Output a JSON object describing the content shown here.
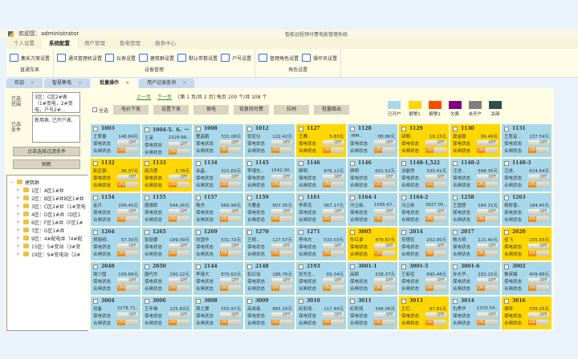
{
  "header": {
    "welcome": "欢迎您：administrator",
    "system_title": "智能远程预付费电能管理系统"
  },
  "menu_tabs": [
    {
      "label": "个人设置"
    },
    {
      "label": "系统配置",
      "active": true
    },
    {
      "label": "用户管理"
    },
    {
      "label": "售电管理"
    },
    {
      "label": "报表中心"
    }
  ],
  "toolbar_groups": [
    {
      "label": "直通车表",
      "buttons": [
        "集采方案设置"
      ]
    },
    {
      "label": "设备管理",
      "buttons": [
        "通讯管理机设置",
        "仪表设置",
        "建筑群设置",
        "默认参数设置",
        "户号设置"
      ]
    },
    {
      "label": "角色设置",
      "buttons": [
        "管理角色设置",
        "操作员设置"
      ]
    }
  ],
  "doc_tabs": [
    {
      "label": "欢迎"
    },
    {
      "label": "智慧售电"
    },
    {
      "label": "批量操作",
      "active": true
    },
    {
      "label": "用户记录查询"
    }
  ],
  "left": {
    "range_label": "已选范围",
    "range_value": "3区：C区2#表（1#变电，2#变电，户号2#...",
    "cond_label": "已选条件",
    "cond_value": "新用表, 已开户表,",
    "filter_button": "点击选择过滤条件",
    "refresh_button": "刷新",
    "tree": [
      "建筑群",
      "1区：A区1#井",
      "2区：B区1#井B区1#井",
      "3区：C区2#井（1#变电",
      "4区：D区1#井（D区1",
      "6区：F区1#井（F区1#",
      "7区：G区1#井",
      "9区：4#配电井（4#配",
      "15区：5#变站（3#变",
      "19区：9#变电站（2#"
    ]
  },
  "pager": {
    "prev": "上一页",
    "next": "下一页",
    "info": "[第 1 页/共 2 页] 每页 100 个/共 108 个"
  },
  "ops": {
    "select_all": "全选",
    "buttons": [
      "电价下发",
      "设置下发",
      "保电",
      "恢复待付费",
      "拉闸",
      "批量跳出"
    ]
  },
  "legend": [
    {
      "label": "已开户",
      "color": "#a8d8ea"
    },
    {
      "label": "报警1",
      "color": "#ffd700"
    },
    {
      "label": "报警2",
      "color": "#ff4a00"
    },
    {
      "label": "欠费",
      "color": "#800080"
    },
    {
      "label": "未开户",
      "color": "#808080"
    },
    {
      "label": "关阀",
      "color": "#2f4f4f"
    }
  ],
  "cell_labels": {
    "power": "保电状态",
    "gate": "合闸状态",
    "off": "OFF",
    "on": "ON"
  },
  "meters": [
    [
      "1003",
      "王爱春",
      "148.84元",
      "b"
    ],
    [
      "1004-5、6、一",
      "王英",
      "2329.66..",
      "b"
    ],
    [
      "1008",
      "曹晶鹏",
      "331.08元",
      "b"
    ],
    [
      "1012",
      "张宏仪",
      "122.42元",
      "b"
    ],
    [
      "1127",
      "王赛..",
      "5.83元",
      "y"
    ],
    [
      "1128",
      "-MM..",
      "88.86元",
      "b"
    ],
    [
      "1129",
      "邱刚..",
      "19.23元",
      "y"
    ],
    [
      "1130",
      "窦金毅",
      "99.49元",
      "y"
    ],
    [
      "1131",
      "王胜音..",
      "137.59元",
      "b"
    ],
    [
      "1132",
      "彭应钢..",
      "36.37元",
      "y"
    ],
    [
      "1133",
      "庞兵勇",
      "3.78元",
      "y"
    ],
    [
      "1134",
      "余晶..",
      "321.83元",
      "b"
    ],
    [
      "1145",
      "李瑾先..",
      "1542.00..",
      "b"
    ],
    [
      "1146",
      "顾明..",
      "876.12元",
      "b"
    ],
    [
      "1146",
      "顾明",
      "601.52元",
      "b"
    ],
    [
      "1148-1,522",
      "沈敏然",
      "330.41元",
      "b"
    ],
    [
      "1148-2",
      "汪进..",
      "568.35元",
      "b"
    ],
    [
      "1148-3",
      "汪进..",
      "624.64元",
      "b"
    ],
    [
      "1154",
      "金日",
      "209.45元",
      "b"
    ],
    [
      "1155",
      "唐德辉",
      "544.26元",
      "b"
    ],
    [
      "1157",
      "杨杰",
      "666.99元",
      "b"
    ],
    [
      "1159",
      "大雁金",
      "907.35元",
      "b"
    ],
    [
      "1161",
      "李燕花",
      "367.17元",
      "b"
    ],
    [
      "1164-1",
      "冯立新..",
      "1595.67..",
      "b"
    ],
    [
      "1164-2",
      "冯立新",
      "3927.05..",
      "b"
    ],
    [
      "1258",
      "王国慧",
      "184.31元",
      "b"
    ],
    [
      "1263",
      "杨财普..",
      "184.45元",
      "b"
    ],
    [
      "1264",
      "郑晓明..",
      "57.30元",
      "b"
    ],
    [
      "1265",
      "张丽娜",
      "199.09元",
      "b"
    ],
    [
      "1269",
      "刘国华",
      "531.72元",
      "b"
    ],
    [
      "1270",
      "王翔..",
      "127.57元",
      "b"
    ],
    [
      "1271",
      "李伟杰",
      "533.03元",
      "b"
    ],
    [
      "3005",
      "牛红卓",
      "479.87元",
      "y"
    ],
    [
      "2014",
      "安理花",
      "202.95元",
      "b"
    ],
    [
      "2017",
      "杨大明",
      "121.40元",
      "b"
    ],
    [
      "2020",
      "佳飞",
      "155.93元",
      "y"
    ],
    [
      "2048",
      "周少国",
      "109.68元",
      "b"
    ],
    [
      "2050",
      "唐代东",
      "190.22元",
      "b"
    ],
    [
      "2144",
      "李瑾大",
      "870.62元",
      "b"
    ],
    [
      "2148",
      "彭红仙",
      "186.76元",
      "b"
    ],
    [
      "2193",
      "张先生..",
      "69.34元",
      "b"
    ],
    [
      "3001-1",
      "高颖",
      "238.37元",
      "b"
    ],
    [
      "3001-5",
      "王新控",
      "690.48元",
      "b"
    ],
    [
      "3001-6",
      "孙长华..",
      "293.15元",
      "b"
    ],
    [
      "3002",
      "鲁英娟",
      "409.88元",
      "b"
    ],
    [
      "3004",
      "设备",
      "2278.71..",
      "b"
    ],
    [
      "3006",
      "王年雄",
      "125.83元",
      "b"
    ],
    [
      "3008",
      "周之翼",
      "550.97元",
      "b"
    ],
    [
      "3009",
      "高成者",
      "885.16元",
      "b"
    ],
    [
      "3010",
      "纪彩丽..",
      "117.49元",
      "b"
    ],
    [
      "3011",
      "纪彩丽",
      "346.06元",
      "b"
    ],
    [
      "3013",
      "王忆..",
      "97.81元",
      "y"
    ],
    [
      "3014",
      "仇秀华",
      "1103.54..",
      "b"
    ],
    [
      "3016",
      "谢晖",
      "339.25元",
      "y"
    ]
  ]
}
